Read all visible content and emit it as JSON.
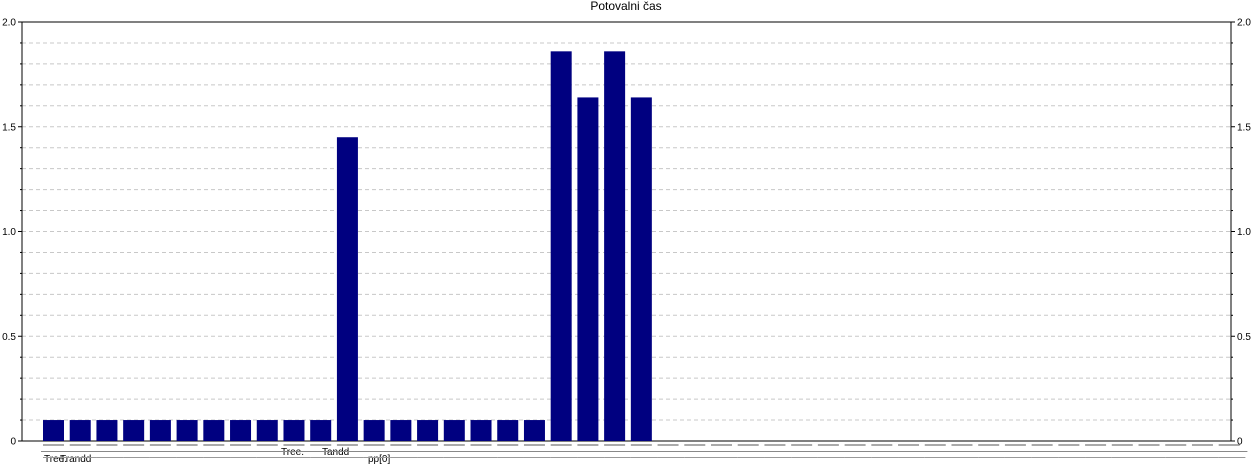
{
  "chart_data": {
    "type": "bar",
    "title": "Potovalni čas",
    "xlabel": "",
    "ylabel": "",
    "ylim": [
      0,
      2.0
    ],
    "yticks": [
      "0",
      "0.5",
      "1.0",
      "1.5",
      "2.0"
    ],
    "yticks_right": [
      "0",
      "0.5",
      "1.0",
      "1.5",
      "2.0"
    ],
    "grid": true,
    "colors": {
      "bar": "#000080",
      "grid": "#c8c8c8",
      "axis": "#000000"
    },
    "visible_label_fragments": [
      "Tree.",
      "Tree.",
      "Trandd",
      "Tandd",
      "pp[0]"
    ],
    "values": [
      0.1,
      0.1,
      0.1,
      0.1,
      0.1,
      0.1,
      0.1,
      0.1,
      0.1,
      0.1,
      0.1,
      1.45,
      0.1,
      0.1,
      0.1,
      0.1,
      0.1,
      0.1,
      0.1,
      1.86,
      1.64,
      1.86,
      1.64,
      0,
      0,
      0,
      0,
      0,
      0,
      0,
      0,
      0,
      0,
      0,
      0,
      0,
      0,
      0,
      0,
      0,
      0,
      0,
      0,
      0,
      0
    ]
  }
}
